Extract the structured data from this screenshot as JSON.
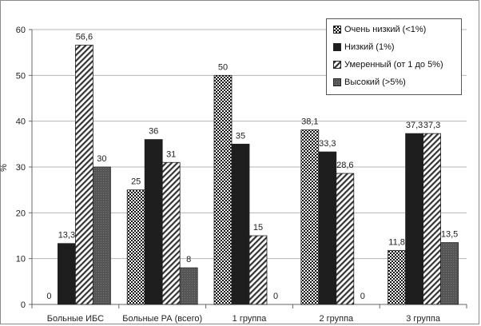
{
  "chart_data": {
    "type": "bar",
    "title": "",
    "xlabel": "",
    "ylabel": "%",
    "ylim": [
      0,
      60
    ],
    "yticks": [
      0,
      10,
      20,
      30,
      40,
      50,
      60
    ],
    "grid": true,
    "legend_position": "top-right",
    "categories": [
      "Больные ИБС",
      "Больные РА (всего)",
      "1 группа",
      "2 группа",
      "3 группа"
    ],
    "series": [
      {
        "name": "Очень низкий (<1%)",
        "values": [
          0,
          25,
          50,
          38.1,
          11.8
        ],
        "labels": [
          "0",
          "25",
          "50",
          "38,1",
          "11,8"
        ],
        "pattern": "dots",
        "color": "#111111"
      },
      {
        "name": "Низкий (1%)",
        "values": [
          13.3,
          36,
          35,
          33.3,
          37.3
        ],
        "labels": [
          "13,3",
          "36",
          "35",
          "33,3",
          "37,3"
        ],
        "pattern": "solid",
        "color": "#1e1e1e"
      },
      {
        "name": "Умеренный (от 1 до 5%)",
        "values": [
          56.6,
          31,
          15,
          28.6,
          37.3
        ],
        "labels": [
          "56,6",
          "31",
          "15",
          "28,6",
          "37,3"
        ],
        "pattern": "hatch",
        "color": "#333333"
      },
      {
        "name": "Высокий (>5%)",
        "values": [
          30,
          8,
          0,
          0,
          13.5
        ],
        "labels": [
          "30",
          "8",
          "0",
          "0",
          "13,5"
        ],
        "pattern": "dark",
        "color": "#5a5a5a"
      }
    ]
  }
}
